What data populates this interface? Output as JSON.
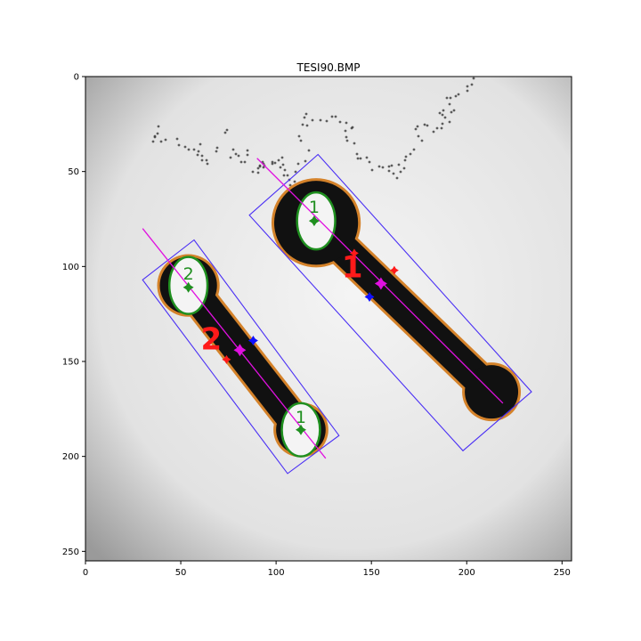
{
  "chart_data": {
    "type": "image",
    "title": "TESI90.BMP",
    "xlim": [
      0,
      255
    ],
    "ylim": [
      255,
      0
    ],
    "xticks": [
      0,
      50,
      100,
      150,
      200,
      250
    ],
    "yticks": [
      0,
      50,
      100,
      150,
      200,
      250
    ],
    "grid": false,
    "objects": [
      {
        "label": "1",
        "head": [
          121,
          77
        ],
        "tail": [
          213,
          166
        ],
        "head_hole": {
          "cx": 121,
          "cy": 76,
          "rx": 10,
          "ry": 15
        },
        "head_radius": 22,
        "tail_radius": 14,
        "shaft_halfwidth": 8,
        "centroid": [
          155,
          109
        ],
        "major_axis": [
          [
            90,
            43
          ],
          [
            219,
            172
          ]
        ],
        "bbox_corners": [
          [
            86,
            73
          ],
          [
            122,
            41
          ],
          [
            234,
            166
          ],
          [
            198,
            197
          ]
        ],
        "blue_point": [
          149,
          116
        ],
        "red_points": [
          [
            162,
            102
          ],
          [
            141,
            93
          ]
        ],
        "hole_center": [
          120,
          76
        ],
        "hole_label": "1",
        "label_pos": [
          140,
          100
        ]
      },
      {
        "label": "2",
        "head": [
          54,
          110
        ],
        "tail": [
          113,
          186
        ],
        "head_hole": {
          "cx": 54,
          "cy": 110,
          "rx": 10,
          "ry": 15
        },
        "head_radius": 15,
        "tail_radius": 13,
        "shaft_halfwidth": 8,
        "centroid": [
          81,
          144
        ],
        "major_axis": [
          [
            30,
            80
          ],
          [
            126,
            201
          ]
        ],
        "bbox_corners": [
          [
            30,
            107
          ],
          [
            57,
            86
          ],
          [
            133,
            189
          ],
          [
            106,
            209
          ]
        ],
        "blue_point": [
          88,
          139
        ],
        "red_points": [
          [
            74,
            149
          ]
        ],
        "hole_center": [
          54,
          111
        ],
        "hole_label": "2",
        "label_pos": [
          66,
          138
        ],
        "tail_hole": {
          "cx": 113,
          "cy": 186,
          "rx": 10,
          "ry": 14,
          "label": "1"
        }
      }
    ],
    "specks": [
      [
        82,
        56
      ],
      [
        81,
        64
      ],
      [
        78,
        68
      ],
      [
        76,
        73
      ],
      [
        78,
        67
      ],
      [
        85,
        73
      ],
      [
        90,
        71
      ],
      [
        103,
        70
      ],
      [
        105,
        77
      ],
      [
        112,
        79
      ],
      [
        116,
        82
      ],
      [
        122,
        82
      ],
      [
        129,
        76
      ],
      [
        127,
        84
      ],
      [
        126,
        88
      ],
      [
        131,
        89
      ],
      [
        131,
        94
      ],
      [
        136,
        94
      ],
      [
        137,
        98
      ],
      [
        148,
        80
      ],
      [
        147,
        84
      ],
      [
        157,
        63
      ],
      [
        159,
        60
      ],
      [
        166,
        82
      ],
      [
        169,
        87
      ],
      [
        163,
        91
      ],
      [
        172,
        89
      ],
      [
        175,
        96
      ],
      [
        179,
        96
      ],
      [
        182,
        83
      ],
      [
        182,
        88
      ],
      [
        188,
        107
      ],
      [
        194,
        103
      ],
      [
        196,
        101
      ],
      [
        196,
        100
      ],
      [
        200,
        98
      ],
      [
        200,
        102
      ],
      [
        194,
        108
      ],
      [
        199,
        96
      ],
      [
        201,
        100
      ],
      [
        210,
        96
      ],
      [
        210,
        98
      ],
      [
        213,
        97
      ],
      [
        217,
        94
      ],
      [
        221,
        91
      ],
      [
        222,
        99
      ],
      [
        219,
        102
      ],
      [
        224,
        105
      ],
      [
        223,
        111
      ],
      [
        227,
        111
      ],
      [
        229,
        116
      ],
      [
        230,
        122
      ],
      [
        235,
        118
      ],
      [
        236,
        107
      ],
      [
        239,
        98
      ],
      [
        247,
        95
      ],
      [
        251,
        83
      ],
      [
        242,
        72
      ],
      [
        240,
        67
      ],
      [
        244,
        54
      ],
      [
        249,
        55
      ],
      [
        246,
        46
      ],
      [
        248,
        42
      ],
      [
        255,
        49
      ],
      [
        264,
        49
      ],
      [
        271,
        50
      ],
      [
        277,
        45
      ],
      [
        281,
        45
      ],
      [
        286,
        51
      ],
      [
        293,
        52
      ],
      [
        299,
        58
      ],
      [
        300,
        57
      ],
      [
        292,
        61
      ],
      [
        293,
        68
      ],
      [
        294,
        72
      ],
      [
        302,
        75
      ],
      [
        305,
        87
      ],
      [
        306,
        92
      ],
      [
        309,
        92
      ],
      [
        316,
        91
      ],
      [
        319,
        96
      ],
      [
        322,
        105
      ],
      [
        330,
        101
      ],
      [
        334,
        102
      ],
      [
        341,
        101
      ],
      [
        344,
        100
      ],
      [
        341,
        106
      ],
      [
        346,
        109
      ],
      [
        350,
        114
      ],
      [
        354,
        107
      ],
      [
        358,
        103
      ],
      [
        352,
        99
      ],
      [
        359,
        94
      ],
      [
        360,
        90
      ],
      [
        365,
        87
      ],
      [
        369,
        82
      ],
      [
        378,
        72
      ],
      [
        374,
        67
      ],
      [
        371,
        59
      ],
      [
        373,
        56
      ],
      [
        381,
        54
      ],
      [
        384,
        55
      ],
      [
        391,
        62
      ],
      [
        395,
        58
      ],
      [
        400,
        58
      ],
      [
        401,
        53
      ],
      [
        409,
        51
      ],
      [
        404,
        46
      ],
      [
        401,
        43
      ],
      [
        398,
        41
      ],
      [
        402,
        38
      ],
      [
        411,
        40
      ],
      [
        414,
        38
      ],
      [
        409,
        31
      ],
      [
        406,
        24
      ],
      [
        410,
        24
      ],
      [
        416,
        22
      ],
      [
        419,
        20
      ],
      [
        429,
        16
      ],
      [
        429,
        11
      ],
      [
        434,
        9
      ],
      [
        436,
        2
      ]
    ]
  }
}
